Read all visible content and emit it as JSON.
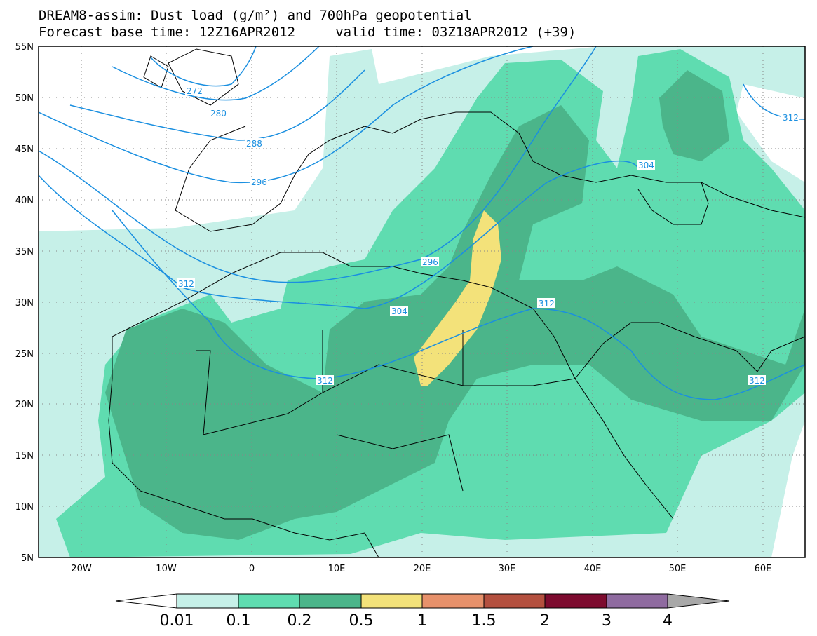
{
  "title": {
    "line1": "DREAM8-assim: Dust load (g/m²) and 700hPa geopotential",
    "line2": "Forecast base time: 12Z16APR2012     valid time: 03Z18APR2012 (+39)"
  },
  "axes": {
    "lat_labels": [
      "55N",
      "50N",
      "45N",
      "40N",
      "35N",
      "30N",
      "25N",
      "20N",
      "15N",
      "10N",
      "5N"
    ],
    "lon_labels": [
      "20W",
      "10W",
      "0",
      "10E",
      "20E",
      "30E",
      "40E",
      "50E",
      "60E"
    ]
  },
  "contour_labels": [
    "272",
    "280",
    "288",
    "296",
    "296",
    "304",
    "304",
    "312",
    "312",
    "312",
    "312",
    "312"
  ],
  "colorbar": {
    "labels": [
      "0.01",
      "0.1",
      "0.2",
      "0.5",
      "1",
      "1.5",
      "2",
      "3",
      "4"
    ],
    "colors": [
      "#c6f0e8",
      "#5fdcb0",
      "#4bb58a",
      "#f3e27a",
      "#e7916b",
      "#b4503f",
      "#7d0b2f",
      "#8f6ba0"
    ],
    "under_color": "#ffffff",
    "over_color": "#a8a8a8"
  },
  "colors": {
    "contour": "#1a8fe0",
    "coast": "#000000",
    "grid": "#888888"
  }
}
